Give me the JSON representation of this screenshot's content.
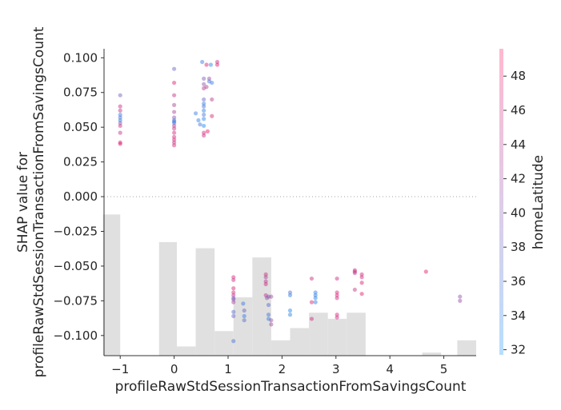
{
  "chart_data": {
    "type": "scatter",
    "title": "",
    "xlabel": "profileRawStdSessionTransactionFromSavingsCount",
    "ylabel_lines": [
      "SHAP value for",
      "profileRawStdSessionTransactionFromSavingsCount"
    ],
    "colorbar_label": "homeLatitude",
    "xlim": [
      -1.3,
      5.6
    ],
    "ylim": [
      -0.1145,
      0.1065
    ],
    "x_ticks": [
      -1,
      0,
      1,
      2,
      3,
      4,
      5
    ],
    "x_tick_labels": [
      "−1",
      "0",
      "1",
      "2",
      "3",
      "4",
      "5"
    ],
    "y_ticks": [
      0.1,
      0.075,
      0.05,
      0.025,
      0.0,
      -0.025,
      -0.05,
      -0.075,
      -0.1
    ],
    "y_tick_labels": [
      "0.100",
      "0.075",
      "0.050",
      "0.025",
      "0.000",
      "−0.025",
      "−0.050",
      "−0.075",
      "−0.100"
    ],
    "colorbar_range": [
      31.7,
      49.6
    ],
    "colorbar_ticks": [
      32,
      34,
      36,
      38,
      40,
      42,
      44,
      46,
      48
    ],
    "colors": {
      "low": "#008afb",
      "mid": "#8b4aa8",
      "high": "#ff0052"
    },
    "zero_line": true,
    "histogram": {
      "color": "#e0e0e0",
      "bins": [
        {
          "x0": -1.32,
          "x1": -1.0,
          "height": 0.46
        },
        {
          "x0": -0.28,
          "x1": 0.05,
          "height": 0.37
        },
        {
          "x0": 0.05,
          "x1": 0.4,
          "height": 0.03
        },
        {
          "x0": 0.4,
          "x1": 0.75,
          "height": 0.35
        },
        {
          "x0": 0.75,
          "x1": 1.1,
          "height": 0.08
        },
        {
          "x0": 1.1,
          "x1": 1.45,
          "height": 0.19
        },
        {
          "x0": 1.45,
          "x1": 1.8,
          "height": 0.32
        },
        {
          "x0": 1.8,
          "x1": 2.15,
          "height": 0.05
        },
        {
          "x0": 2.15,
          "x1": 2.5,
          "height": 0.09
        },
        {
          "x0": 2.5,
          "x1": 2.85,
          "height": 0.14
        },
        {
          "x0": 2.85,
          "x1": 3.2,
          "height": 0.12
        },
        {
          "x0": 3.2,
          "x1": 3.55,
          "height": 0.14
        },
        {
          "x0": 4.6,
          "x1": 4.95,
          "height": 0.01
        },
        {
          "x0": 5.25,
          "x1": 5.6,
          "height": 0.05
        }
      ]
    },
    "points": [
      [
        -1.0,
        0.073,
        38.5
      ],
      [
        -1.0,
        0.065,
        45.5
      ],
      [
        -1.0,
        0.062,
        45.0
      ],
      [
        -1.0,
        0.059,
        34.0
      ],
      [
        -1.0,
        0.057,
        36.0
      ],
      [
        -1.0,
        0.055,
        34.5
      ],
      [
        -1.0,
        0.053,
        39.5
      ],
      [
        -1.0,
        0.051,
        45.8
      ],
      [
        -1.0,
        0.046,
        44.5
      ],
      [
        -1.0,
        0.039,
        46.5
      ],
      [
        -1.0,
        0.038,
        47.0
      ],
      [
        0.0,
        0.092,
        38.0
      ],
      [
        0.0,
        0.082,
        47.0
      ],
      [
        0.0,
        0.073,
        45.0
      ],
      [
        0.0,
        0.066,
        43.0
      ],
      [
        0.0,
        0.061,
        42.5
      ],
      [
        0.0,
        0.057,
        41.0
      ],
      [
        0.0,
        0.055,
        34.0
      ],
      [
        0.0,
        0.054,
        36.5
      ],
      [
        0.0,
        0.053,
        34.5
      ],
      [
        0.0,
        0.051,
        44.0
      ],
      [
        0.0,
        0.049,
        45.0
      ],
      [
        0.0,
        0.046,
        46.0
      ],
      [
        0.0,
        0.043,
        45.5
      ],
      [
        0.0,
        0.041,
        46.5
      ],
      [
        0.0,
        0.039,
        45.0
      ],
      [
        0.0,
        0.037,
        46.0
      ],
      [
        0.4,
        0.06,
        34.5
      ],
      [
        0.45,
        0.055,
        33.5
      ],
      [
        0.48,
        0.052,
        36.0
      ],
      [
        0.52,
        0.097,
        35.0
      ],
      [
        0.55,
        0.085,
        39.5
      ],
      [
        0.55,
        0.081,
        40.5
      ],
      [
        0.55,
        0.078,
        44.0
      ],
      [
        0.55,
        0.07,
        38.0
      ],
      [
        0.55,
        0.067,
        34.0
      ],
      [
        0.55,
        0.065,
        36.0
      ],
      [
        0.55,
        0.062,
        33.5
      ],
      [
        0.55,
        0.059,
        35.5
      ],
      [
        0.55,
        0.056,
        33.5
      ],
      [
        0.55,
        0.051,
        32.5
      ],
      [
        0.55,
        0.046,
        46.0
      ],
      [
        0.55,
        0.044,
        45.0
      ],
      [
        0.6,
        0.095,
        47.0
      ],
      [
        0.6,
        0.079,
        43.5
      ],
      [
        0.62,
        0.047,
        47.5
      ],
      [
        0.65,
        0.085,
        41.5
      ],
      [
        0.65,
        0.083,
        35.5
      ],
      [
        0.68,
        0.095,
        33.0
      ],
      [
        0.7,
        0.082,
        35.0
      ],
      [
        0.7,
        0.07,
        44.0
      ],
      [
        0.7,
        0.058,
        46.5
      ],
      [
        0.8,
        0.097,
        45.5
      ],
      [
        0.8,
        0.095,
        47.5
      ],
      [
        1.1,
        -0.058,
        46.5
      ],
      [
        1.1,
        -0.06,
        45.0
      ],
      [
        1.1,
        -0.066,
        47.0
      ],
      [
        1.1,
        -0.069,
        46.0
      ],
      [
        1.1,
        -0.071,
        44.5
      ],
      [
        1.1,
        -0.073,
        38.5
      ],
      [
        1.1,
        -0.074,
        40.0
      ],
      [
        1.1,
        -0.076,
        42.5
      ],
      [
        1.1,
        -0.083,
        36.5
      ],
      [
        1.1,
        -0.086,
        38.0
      ],
      [
        1.1,
        -0.104,
        36.0
      ],
      [
        1.28,
        -0.077,
        35.0
      ],
      [
        1.3,
        -0.082,
        38.0
      ],
      [
        1.3,
        -0.086,
        34.0
      ],
      [
        1.3,
        -0.089,
        37.0
      ],
      [
        1.7,
        -0.056,
        45.5
      ],
      [
        1.7,
        -0.058,
        43.0
      ],
      [
        1.7,
        -0.061,
        44.0
      ],
      [
        1.7,
        -0.063,
        45.5
      ],
      [
        1.7,
        -0.071,
        44.5
      ],
      [
        1.72,
        -0.073,
        40.0
      ],
      [
        1.75,
        -0.072,
        41.0
      ],
      [
        1.75,
        -0.078,
        37.0
      ],
      [
        1.75,
        -0.085,
        35.5
      ],
      [
        1.75,
        -0.088,
        34.0
      ],
      [
        1.8,
        -0.072,
        41.5
      ],
      [
        1.8,
        -0.089,
        41.5
      ],
      [
        1.8,
        -0.092,
        42.0
      ],
      [
        2.15,
        -0.069,
        36.0
      ],
      [
        2.15,
        -0.071,
        34.5
      ],
      [
        2.15,
        -0.082,
        33.0
      ],
      [
        2.15,
        -0.085,
        34.0
      ],
      [
        2.55,
        -0.059,
        45.5
      ],
      [
        2.55,
        -0.076,
        46.5
      ],
      [
        2.55,
        -0.088,
        46.0
      ],
      [
        2.62,
        -0.069,
        34.0
      ],
      [
        2.62,
        -0.071,
        34.5
      ],
      [
        2.62,
        -0.073,
        33.5
      ],
      [
        2.62,
        -0.076,
        34.5
      ],
      [
        3.02,
        -0.059,
        45.5
      ],
      [
        3.02,
        -0.069,
        47.5
      ],
      [
        3.02,
        -0.071,
        46.0
      ],
      [
        3.02,
        -0.073,
        45.5
      ],
      [
        3.02,
        -0.085,
        46.5
      ],
      [
        3.02,
        -0.087,
        45.5
      ],
      [
        3.35,
        -0.053,
        45.0
      ],
      [
        3.35,
        -0.054,
        46.0
      ],
      [
        3.35,
        -0.055,
        44.0
      ],
      [
        3.35,
        -0.067,
        44.5
      ],
      [
        3.48,
        -0.056,
        46.5
      ],
      [
        3.48,
        -0.058,
        45.5
      ],
      [
        3.48,
        -0.062,
        47.0
      ],
      [
        3.48,
        -0.07,
        47.5
      ],
      [
        4.67,
        -0.054,
        47.0
      ],
      [
        5.3,
        -0.072,
        40.5
      ],
      [
        5.3,
        -0.075,
        41.5
      ]
    ]
  }
}
